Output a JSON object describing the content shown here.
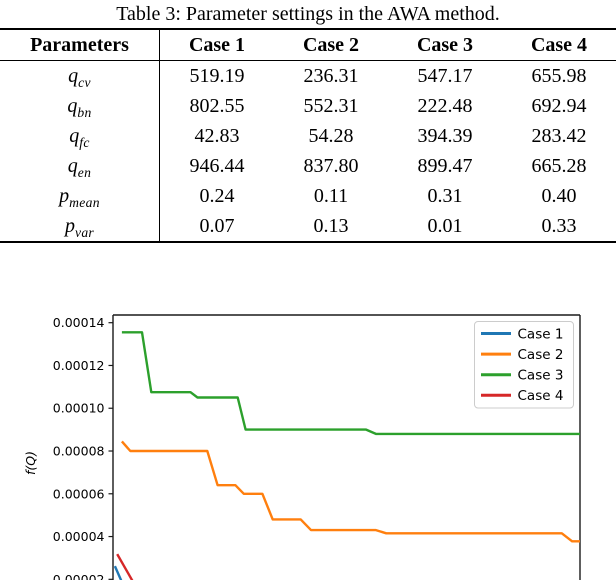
{
  "table": {
    "title": "Table 3: Parameter settings in the AWA method.",
    "header": {
      "param": "Parameters",
      "cases": [
        "Case 1",
        "Case 2",
        "Case 3",
        "Case 4"
      ]
    },
    "rows": [
      {
        "base": "q",
        "sub": "cv",
        "values": [
          "519.19",
          "236.31",
          "547.17",
          "655.98"
        ]
      },
      {
        "base": "q",
        "sub": "bn",
        "values": [
          "802.55",
          "552.31",
          "222.48",
          "692.94"
        ]
      },
      {
        "base": "q",
        "sub": "fc",
        "values": [
          "42.83",
          "54.28",
          "394.39",
          "283.42"
        ]
      },
      {
        "base": "q",
        "sub": "en",
        "values": [
          "946.44",
          "837.80",
          "899.47",
          "665.28"
        ]
      },
      {
        "base": "p",
        "sub": "mean",
        "values": [
          "0.24",
          "0.11",
          "0.31",
          "0.40"
        ]
      },
      {
        "base": "p",
        "sub": "var",
        "values": [
          "0.07",
          "0.13",
          "0.01",
          "0.33"
        ]
      }
    ]
  },
  "chart_data": {
    "type": "line",
    "title": "",
    "xlabel": "",
    "ylabel": "f(Q)",
    "grid": false,
    "ylim_visible": [
      1.95e-05,
      0.000142
    ],
    "yticks": [
      {
        "value": 0.00014,
        "label": "0.00014"
      },
      {
        "value": 0.00012,
        "label": "0.00012"
      },
      {
        "value": 0.0001,
        "label": "0.00010"
      },
      {
        "value": 8e-05,
        "label": "0.00008"
      },
      {
        "value": 6e-05,
        "label": "0.00006"
      },
      {
        "value": 4e-05,
        "label": "0.00004"
      },
      {
        "value": 2e-05,
        "label": "0.00002"
      }
    ],
    "legend": {
      "position": "upper right",
      "entries": [
        "Case 1",
        "Case 2",
        "Case 3",
        "Case 4"
      ]
    },
    "series": [
      {
        "name": "Case 1",
        "color": "#1f77b4",
        "points": [
          [
            0.004,
            2.62e-05
          ],
          [
            0.023,
            1.68e-05
          ]
        ]
      },
      {
        "name": "Case 2",
        "color": "#ff7f0e",
        "points": [
          [
            0.019,
            8.45e-05
          ],
          [
            0.037,
            8e-05
          ],
          [
            0.202,
            8e-05
          ],
          [
            0.224,
            6.4e-05
          ],
          [
            0.262,
            6.4e-05
          ],
          [
            0.28,
            6e-05
          ],
          [
            0.32,
            6e-05
          ],
          [
            0.342,
            4.8e-05
          ],
          [
            0.402,
            4.8e-05
          ],
          [
            0.424,
            4.3e-05
          ],
          [
            0.563,
            4.3e-05
          ],
          [
            0.585,
            4.15e-05
          ],
          [
            0.961,
            4.15e-05
          ],
          [
            0.983,
            3.78e-05
          ],
          [
            1.0,
            3.78e-05
          ]
        ]
      },
      {
        "name": "Case 3",
        "color": "#2ca02c",
        "points": [
          [
            0.019,
            0.0001355
          ],
          [
            0.062,
            0.0001355
          ],
          [
            0.082,
            0.0001075
          ],
          [
            0.166,
            0.0001075
          ],
          [
            0.181,
            0.000105
          ],
          [
            0.267,
            0.000105
          ],
          [
            0.284,
            9e-05
          ],
          [
            0.542,
            9e-05
          ],
          [
            0.563,
            8.8e-05
          ],
          [
            1.0,
            8.8e-05
          ]
        ]
      },
      {
        "name": "Case 4",
        "color": "#d62728",
        "points": [
          [
            0.009,
            3.18e-05
          ],
          [
            0.047,
            1.73e-05
          ]
        ]
      }
    ],
    "axis_color": "#1a1a1a"
  }
}
